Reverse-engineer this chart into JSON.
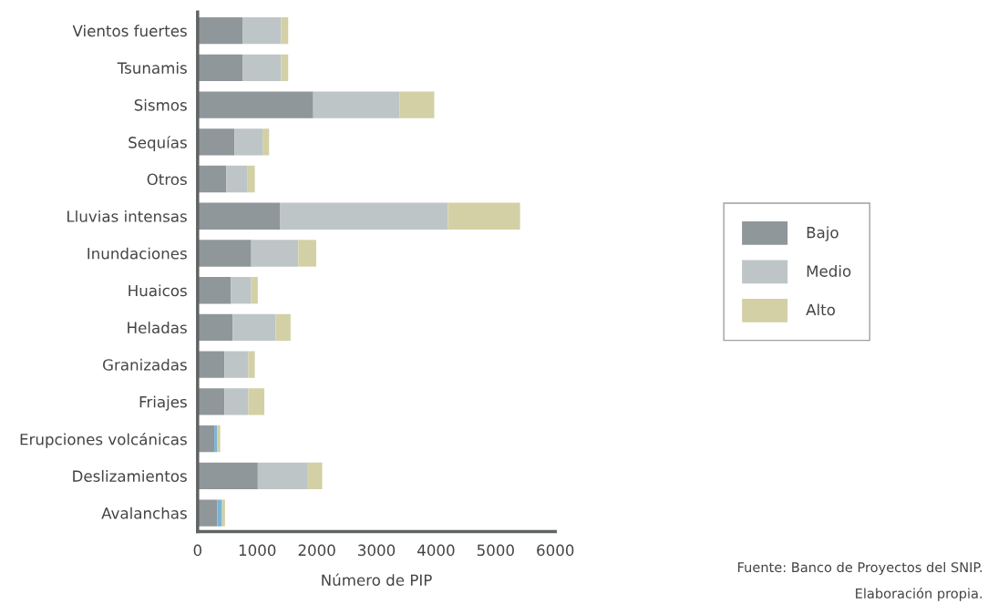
{
  "chart_data": {
    "type": "bar",
    "orientation": "horizontal",
    "stacked": true,
    "categories": [
      "Vientos fuertes",
      "Tsunamis",
      "Sismos",
      "Sequías",
      "Otros",
      "Lluvias intensas",
      "Inundaciones",
      "Huaicos",
      "Heladas",
      "Granizadas",
      "Friajes",
      "Erupciones volcánicas",
      "Deslizamientos",
      "Avalanchas"
    ],
    "series": [
      {
        "name": "Bajo",
        "color": "#8f979a",
        "values": [
          760,
          760,
          1940,
          620,
          480,
          1380,
          900,
          560,
          590,
          450,
          450,
          280,
          1010,
          330
        ]
      },
      {
        "name": "Medio",
        "color": "#bec5c7",
        "colors": [
          "#bec5c7",
          "#bec5c7",
          "#bec5c7",
          "#bec5c7",
          "#bec5c7",
          "#bec5c7",
          "#bec5c7",
          "#bec5c7",
          "#bec5c7",
          "#bec5c7",
          "#bec5c7",
          "#7ab4d4",
          "#bec5c7",
          "#7ab4d4"
        ],
        "values": [
          640,
          640,
          1450,
          470,
          360,
          2820,
          790,
          340,
          720,
          400,
          400,
          50,
          840,
          80
        ]
      },
      {
        "name": "Alto",
        "color": "#d3d0a6",
        "values": [
          120,
          120,
          580,
          110,
          120,
          1210,
          300,
          110,
          250,
          110,
          270,
          50,
          240,
          50
        ]
      }
    ],
    "xlim": [
      0,
      6000
    ],
    "xticks": [
      0,
      1000,
      2000,
      3000,
      4000,
      5000,
      6000
    ],
    "xlabel": "Número de PIP",
    "grid": false,
    "legend": "right",
    "annotations": [
      "Fuente: Banco de Proyectos del SNIP.\nElaboración propia."
    ]
  }
}
